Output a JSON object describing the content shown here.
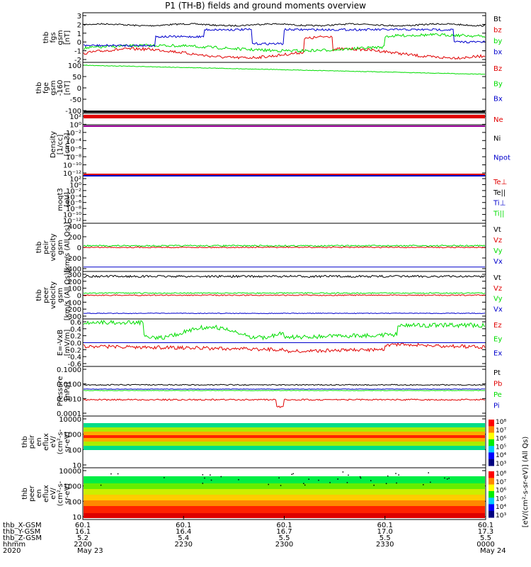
{
  "title": "P1 (TH-B) fields and ground moments overview",
  "colors": {
    "black": "#000000",
    "red": "#e00000",
    "green": "#00dd00",
    "blue": "#0000cc",
    "purple": "#990099"
  },
  "panels": [
    {
      "ylabel": [
        "thb",
        "fgs",
        "gsm",
        "[nT]"
      ],
      "ticks": [
        "3",
        "2",
        "1",
        "0",
        "-1",
        "-2"
      ],
      "legend": [
        {
          "t": "Bt",
          "c": "black"
        },
        {
          "t": "bz",
          "c": "red"
        },
        {
          "t": "by",
          "c": "green"
        },
        {
          "t": "bx",
          "c": "blue"
        }
      ]
    },
    {
      "ylabel": [
        "thb",
        "fge",
        "gsm",
        "-160",
        "[nT]"
      ],
      "ticks": [
        "100",
        "50",
        "0",
        "-50",
        "-100"
      ],
      "legend": [
        {
          "t": "Bz",
          "c": "red"
        },
        {
          "t": "By",
          "c": "green"
        },
        {
          "t": "Bx",
          "c": "blue"
        }
      ]
    },
    {
      "ylabel": [
        "Density",
        "[1/cc]",
        "[cm-3]"
      ],
      "ticks": [
        "10²",
        "10⁰",
        "10⁻²",
        "10⁻⁴",
        "10⁻⁶",
        "10⁻⁸",
        "10⁻¹⁰",
        "10⁻¹²"
      ],
      "legend": [
        {
          "t": "Ne",
          "c": "red"
        },
        {
          "t": "Ni",
          "c": "black"
        },
        {
          "t": "Npot",
          "c": "blue"
        }
      ]
    },
    {
      "ylabel": [
        "moqt3",
        "[eV]"
      ],
      "ticks": [
        "10²",
        "10⁰",
        "10⁻²",
        "10⁻⁴",
        "10⁻⁶",
        "10⁻⁸",
        "10⁻¹⁰",
        "10⁻¹²"
      ],
      "legend": [
        {
          "t": "Te⊥",
          "c": "red"
        },
        {
          "t": "Te||",
          "c": "black"
        },
        {
          "t": "Ti⊥",
          "c": "blue"
        },
        {
          "t": "Ti||",
          "c": "green"
        }
      ]
    },
    {
      "ylabel": [
        "thb",
        "peir",
        "velocity",
        "gsm",
        "[km/s (All Qs)]"
      ],
      "ticks": [
        "400",
        "200",
        "0",
        "-200",
        "-400"
      ],
      "legend": [
        {
          "t": "Vt",
          "c": "black"
        },
        {
          "t": "Vz",
          "c": "red"
        },
        {
          "t": "Vy",
          "c": "green"
        },
        {
          "t": "Vx",
          "c": "blue"
        }
      ]
    },
    {
      "ylabel": [
        "thb",
        "peer",
        "velocity",
        "gsm",
        "[km/s (All Qs)]"
      ],
      "ticks": [
        "300",
        "200",
        "100",
        "0",
        "-100",
        "-200",
        "-300"
      ],
      "legend": [
        {
          "t": "Vt",
          "c": "black"
        },
        {
          "t": "Vz",
          "c": "red"
        },
        {
          "t": "Vy",
          "c": "green"
        },
        {
          "t": "Vx",
          "c": "blue"
        }
      ]
    },
    {
      "ylabel": [
        "E=-VxB",
        "[mV/m]"
      ],
      "ticks": [
        "0.6",
        "0.4",
        "0.2",
        "0.0",
        "-0.2",
        "-0.4",
        "-0.6"
      ],
      "legend": [
        {
          "t": "Ez",
          "c": "red"
        },
        {
          "t": "Ey",
          "c": "green"
        },
        {
          "t": "Ex",
          "c": "blue"
        }
      ]
    },
    {
      "ylabel": [
        "Pressure",
        "[nPa]"
      ],
      "ticks": [
        "0.1000",
        "0.0100",
        "0.0010",
        "0.0001"
      ],
      "legend": [
        {
          "t": "Pt",
          "c": "black"
        },
        {
          "t": "Pb",
          "c": "red"
        },
        {
          "t": "Pe",
          "c": "green"
        },
        {
          "t": "Pi",
          "c": "blue"
        }
      ]
    },
    {
      "ylabel": [
        "thb",
        "peir",
        "en",
        "eflux",
        "eV/",
        "(cm²-s-",
        "sr-eV)"
      ],
      "ticks": [
        "10000",
        "1000",
        "100",
        "10"
      ],
      "legend": []
    },
    {
      "ylabel": [
        "thb",
        "peer",
        "en",
        "eflux",
        "eV/",
        "(cm²-s-",
        "sr-eV)"
      ],
      "ticks": [
        "10000",
        "1000",
        "100",
        "10"
      ],
      "legend": []
    }
  ],
  "colorbar": {
    "ticks": [
      "10⁸",
      "10⁷",
      "10⁶",
      "10⁵",
      "10⁴",
      "10³"
    ],
    "label": "[eV/(cm²-s-sr-eV)] (All Qs)"
  },
  "xaxis": {
    "row_labels": [
      "thb_X-GSM",
      "thb_Y-GSM",
      "thb_Z-GSM",
      "hhmm",
      "2020"
    ],
    "ticks": [
      {
        "rows": [
          "60.1",
          "16.1",
          "5.2",
          "2200",
          "May 23"
        ]
      },
      {
        "rows": [
          "60.1",
          "16.4",
          "5.4",
          "2230",
          ""
        ]
      },
      {
        "rows": [
          "60.1",
          "16.7",
          "5.5",
          "2300",
          ""
        ]
      },
      {
        "rows": [
          "60.1",
          "17.0",
          "5.5",
          "2330",
          ""
        ]
      },
      {
        "rows": [
          "60.1",
          "17.3",
          "5.5",
          "0000",
          "May 24"
        ]
      }
    ]
  },
  "chart_data": {
    "type": "line",
    "title": "P1 (TH-B) fields and ground moments overview",
    "x": [
      "2200",
      "2230",
      "2300",
      "2330",
      "0000"
    ],
    "series": [
      {
        "name": "Bt",
        "values": [
          1.9,
          2.0,
          1.9,
          2.0,
          2.0
        ]
      },
      {
        "name": "bz",
        "values": [
          -1.5,
          -0.8,
          -1.2,
          -0.6,
          -1.6
        ]
      },
      {
        "name": "by",
        "values": [
          -0.6,
          -1.0,
          -0.7,
          0.6,
          0.9
        ]
      },
      {
        "name": "bx",
        "values": [
          -0.3,
          1.4,
          1.4,
          1.4,
          -0.2
        ]
      },
      {
        "name": "By",
        "values": [
          100,
          90,
          80,
          70,
          60
        ]
      },
      {
        "name": "Vt",
        "values": [
          350,
          360,
          350,
          360,
          350
        ]
      },
      {
        "name": "Ey",
        "values": [
          0.6,
          0.25,
          0.1,
          0.5,
          0.5
        ]
      },
      {
        "name": "Ez",
        "values": [
          -0.05,
          -0.3,
          -0.15,
          -0.2,
          -0.3
        ]
      },
      {
        "name": "Ex",
        "values": [
          0.0,
          0.0,
          0.0,
          0.0,
          0.0
        ]
      },
      {
        "name": "Pt",
        "values": [
          0.01,
          0.01,
          0.01,
          0.01,
          0.01
        ]
      },
      {
        "name": "Pe",
        "values": [
          0.005,
          0.005,
          0.005,
          0.005,
          0.005
        ]
      },
      {
        "name": "Pb",
        "values": [
          0.002,
          0.002,
          0.002,
          0.002,
          0.002
        ]
      }
    ]
  }
}
